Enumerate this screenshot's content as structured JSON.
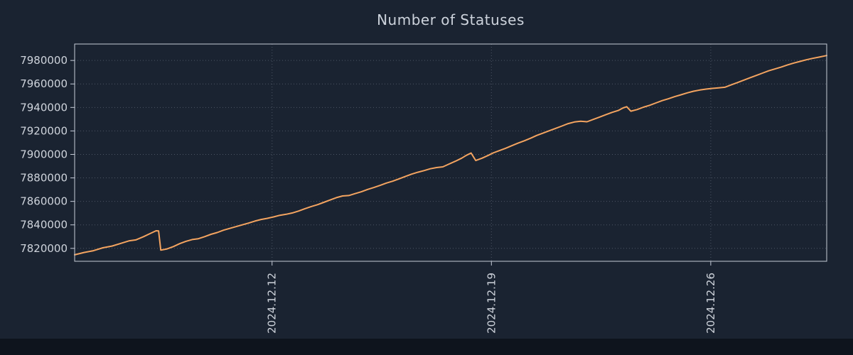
{
  "page": {
    "background": "#1a2331",
    "footer_color": "#0e141d"
  },
  "chart_data": {
    "type": "line",
    "title": "Number of Statuses",
    "title_color": "#cdd3dc",
    "line_color": "#f4a460",
    "axis_color": "#c6ccd8",
    "tick_label_color": "#ced3db",
    "grid_color": "#8a93a5",
    "grid_on": true,
    "legend": "none",
    "xlabel": "",
    "ylabel": "",
    "xlim": [
      5.7,
      29.7
    ],
    "ylim": [
      7809000,
      7994000
    ],
    "xticks": [
      {
        "value": 12,
        "label": "2024.12.12"
      },
      {
        "value": 19,
        "label": "2024.12.19"
      },
      {
        "value": 26,
        "label": "2024.12.26"
      }
    ],
    "yticks": [
      {
        "value": 7820000,
        "label": "7820000"
      },
      {
        "value": 7840000,
        "label": "7840000"
      },
      {
        "value": 7860000,
        "label": "7860000"
      },
      {
        "value": 7880000,
        "label": "7880000"
      },
      {
        "value": 7900000,
        "label": "7900000"
      },
      {
        "value": 7920000,
        "label": "7920000"
      },
      {
        "value": 7940000,
        "label": "7940000"
      },
      {
        "value": 7960000,
        "label": "7960000"
      },
      {
        "value": 7980000,
        "label": "7980000"
      }
    ],
    "series": [
      {
        "name": "statuses",
        "points": [
          [
            5.7,
            7814500
          ],
          [
            6.0,
            7816500
          ],
          [
            6.3,
            7818000
          ],
          [
            6.6,
            7820500
          ],
          [
            6.9,
            7822000
          ],
          [
            7.2,
            7824500
          ],
          [
            7.45,
            7826500
          ],
          [
            7.65,
            7827200
          ],
          [
            7.9,
            7830000
          ],
          [
            8.1,
            7832500
          ],
          [
            8.3,
            7835000
          ],
          [
            8.38,
            7834800
          ],
          [
            8.45,
            7818500
          ],
          [
            8.65,
            7819500
          ],
          [
            8.85,
            7821500
          ],
          [
            9.05,
            7824000
          ],
          [
            9.25,
            7826000
          ],
          [
            9.45,
            7827500
          ],
          [
            9.65,
            7828200
          ],
          [
            9.85,
            7830000
          ],
          [
            10.05,
            7832000
          ],
          [
            10.25,
            7833500
          ],
          [
            10.45,
            7835500
          ],
          [
            10.65,
            7837000
          ],
          [
            10.85,
            7838500
          ],
          [
            11.05,
            7840000
          ],
          [
            11.25,
            7841500
          ],
          [
            11.45,
            7843200
          ],
          [
            11.65,
            7844600
          ],
          [
            11.85,
            7845600
          ],
          [
            12.05,
            7846800
          ],
          [
            12.25,
            7848200
          ],
          [
            12.45,
            7849000
          ],
          [
            12.65,
            7850200
          ],
          [
            12.85,
            7851800
          ],
          [
            13.05,
            7853800
          ],
          [
            13.25,
            7855600
          ],
          [
            13.45,
            7857200
          ],
          [
            13.65,
            7859200
          ],
          [
            13.85,
            7861200
          ],
          [
            14.05,
            7863200
          ],
          [
            14.25,
            7864600
          ],
          [
            14.45,
            7865000
          ],
          [
            14.65,
            7866600
          ],
          [
            14.85,
            7868200
          ],
          [
            15.05,
            7870200
          ],
          [
            15.25,
            7871800
          ],
          [
            15.45,
            7873600
          ],
          [
            15.65,
            7875600
          ],
          [
            15.85,
            7877200
          ],
          [
            16.05,
            7879200
          ],
          [
            16.25,
            7881200
          ],
          [
            16.45,
            7883200
          ],
          [
            16.65,
            7884800
          ],
          [
            16.85,
            7886200
          ],
          [
            17.05,
            7887800
          ],
          [
            17.25,
            7888800
          ],
          [
            17.45,
            7889400
          ],
          [
            17.65,
            7891800
          ],
          [
            17.85,
            7894200
          ],
          [
            18.05,
            7896800
          ],
          [
            18.2,
            7899200
          ],
          [
            18.35,
            7901200
          ],
          [
            18.5,
            7894800
          ],
          [
            18.7,
            7896800
          ],
          [
            18.9,
            7899200
          ],
          [
            19.05,
            7901200
          ],
          [
            19.25,
            7903200
          ],
          [
            19.45,
            7905200
          ],
          [
            19.65,
            7907400
          ],
          [
            19.85,
            7909600
          ],
          [
            20.05,
            7911600
          ],
          [
            20.25,
            7913800
          ],
          [
            20.45,
            7916200
          ],
          [
            20.65,
            7918200
          ],
          [
            20.85,
            7920200
          ],
          [
            21.05,
            7922200
          ],
          [
            21.25,
            7924200
          ],
          [
            21.45,
            7926200
          ],
          [
            21.65,
            7927600
          ],
          [
            21.85,
            7928200
          ],
          [
            22.05,
            7927800
          ],
          [
            22.25,
            7929800
          ],
          [
            22.45,
            7931800
          ],
          [
            22.65,
            7933800
          ],
          [
            22.85,
            7935800
          ],
          [
            23.05,
            7937400
          ],
          [
            23.2,
            7939600
          ],
          [
            23.32,
            7940600
          ],
          [
            23.45,
            7936800
          ],
          [
            23.65,
            7938200
          ],
          [
            23.85,
            7940200
          ],
          [
            24.05,
            7941800
          ],
          [
            24.25,
            7943800
          ],
          [
            24.45,
            7945800
          ],
          [
            24.65,
            7947400
          ],
          [
            24.85,
            7949200
          ],
          [
            25.05,
            7950800
          ],
          [
            25.25,
            7952400
          ],
          [
            25.45,
            7953800
          ],
          [
            25.65,
            7954800
          ],
          [
            25.85,
            7955600
          ],
          [
            26.05,
            7956200
          ],
          [
            26.25,
            7956700
          ],
          [
            26.45,
            7957200
          ],
          [
            26.65,
            7959200
          ],
          [
            26.85,
            7961200
          ],
          [
            27.05,
            7963200
          ],
          [
            27.25,
            7965200
          ],
          [
            27.45,
            7967200
          ],
          [
            27.65,
            7969200
          ],
          [
            27.85,
            7971200
          ],
          [
            28.05,
            7972800
          ],
          [
            28.25,
            7974400
          ],
          [
            28.45,
            7976200
          ],
          [
            28.65,
            7977800
          ],
          [
            28.85,
            7979200
          ],
          [
            29.05,
            7980600
          ],
          [
            29.25,
            7981800
          ],
          [
            29.45,
            7982800
          ],
          [
            29.7,
            7984200
          ]
        ]
      }
    ]
  }
}
